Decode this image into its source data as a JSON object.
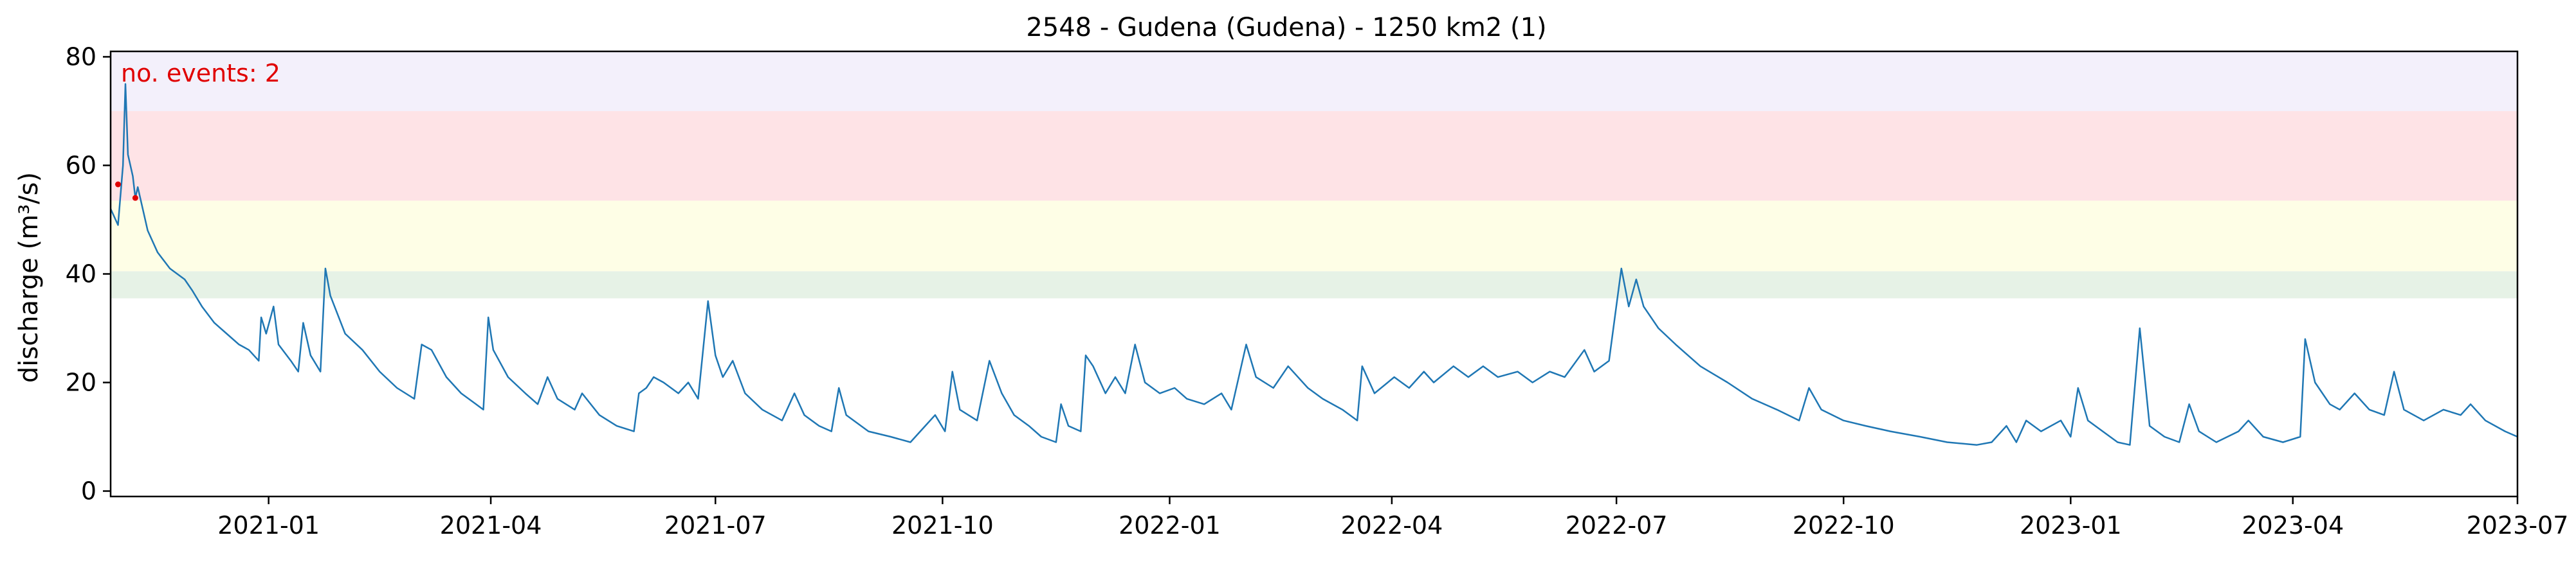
{
  "chart_data": {
    "type": "line",
    "title": "2548 - Gudena (Gudena) - 1250 km2 (1)",
    "xlabel": "",
    "ylabel": "discharge (m³/s)",
    "xlim": [
      "2020-10-29",
      "2023-07-01"
    ],
    "ylim": [
      -1,
      81
    ],
    "x_ticks": [
      "2021-01",
      "2021-04",
      "2021-07",
      "2021-10",
      "2022-01",
      "2022-04",
      "2022-07",
      "2022-10",
      "2023-01",
      "2023-04",
      "2023-07"
    ],
    "y_ticks": [
      0,
      20,
      40,
      60,
      80
    ],
    "grid": false,
    "threshold_bands": [
      {
        "from": 35.5,
        "to": 40.5,
        "color": "#e6f2e6"
      },
      {
        "from": 40.5,
        "to": 53.5,
        "color": "#fefee6"
      },
      {
        "from": 53.5,
        "to": 70.0,
        "color": "#fee3e6"
      },
      {
        "from": 70.0,
        "to": 81.0,
        "color": "#f3f0fb"
      }
    ],
    "annotation": {
      "text": "no. events: 2",
      "color": "#e00000"
    },
    "series": [
      {
        "color": "#1f77b4",
        "points": [
          [
            "2020-10-29",
            52
          ],
          [
            "2020-11-01",
            49
          ],
          [
            "2020-11-03",
            60
          ],
          [
            "2020-11-04",
            75
          ],
          [
            "2020-11-05",
            62
          ],
          [
            "2020-11-07",
            58
          ],
          [
            "2020-11-08",
            54
          ],
          [
            "2020-11-09",
            56
          ],
          [
            "2020-11-11",
            52
          ],
          [
            "2020-11-13",
            48
          ],
          [
            "2020-11-17",
            44
          ],
          [
            "2020-11-22",
            41
          ],
          [
            "2020-11-28",
            39
          ],
          [
            "2020-12-01",
            37
          ],
          [
            "2020-12-05",
            34
          ],
          [
            "2020-12-10",
            31
          ],
          [
            "2020-12-15",
            29
          ],
          [
            "2020-12-20",
            27
          ],
          [
            "2020-12-24",
            26
          ],
          [
            "2020-12-28",
            24
          ],
          [
            "2020-12-29",
            32
          ],
          [
            "2020-12-31",
            29
          ],
          [
            "2021-01-03",
            34
          ],
          [
            "2021-01-05",
            27
          ],
          [
            "2021-01-10",
            24
          ],
          [
            "2021-01-13",
            22
          ],
          [
            "2021-01-15",
            31
          ],
          [
            "2021-01-18",
            25
          ],
          [
            "2021-01-22",
            22
          ],
          [
            "2021-01-24",
            41
          ],
          [
            "2021-01-26",
            36
          ],
          [
            "2021-02-01",
            29
          ],
          [
            "2021-02-08",
            26
          ],
          [
            "2021-02-15",
            22
          ],
          [
            "2021-02-22",
            19
          ],
          [
            "2021-03-01",
            17
          ],
          [
            "2021-03-04",
            27
          ],
          [
            "2021-03-08",
            26
          ],
          [
            "2021-03-14",
            21
          ],
          [
            "2021-03-20",
            18
          ],
          [
            "2021-03-26",
            16
          ],
          [
            "2021-03-29",
            15
          ],
          [
            "2021-03-31",
            32
          ],
          [
            "2021-04-02",
            26
          ],
          [
            "2021-04-08",
            21
          ],
          [
            "2021-04-15",
            18
          ],
          [
            "2021-04-20",
            16
          ],
          [
            "2021-04-24",
            21
          ],
          [
            "2021-04-28",
            17
          ],
          [
            "2021-05-05",
            15
          ],
          [
            "2021-05-08",
            18
          ],
          [
            "2021-05-15",
            14
          ],
          [
            "2021-05-22",
            12
          ],
          [
            "2021-05-29",
            11
          ],
          [
            "2021-05-31",
            18
          ],
          [
            "2021-06-03",
            19
          ],
          [
            "2021-06-06",
            21
          ],
          [
            "2021-06-10",
            20
          ],
          [
            "2021-06-16",
            18
          ],
          [
            "2021-06-20",
            20
          ],
          [
            "2021-06-24",
            17
          ],
          [
            "2021-06-28",
            35
          ],
          [
            "2021-07-01",
            25
          ],
          [
            "2021-07-04",
            21
          ],
          [
            "2021-07-08",
            24
          ],
          [
            "2021-07-13",
            18
          ],
          [
            "2021-07-20",
            15
          ],
          [
            "2021-07-28",
            13
          ],
          [
            "2021-08-02",
            18
          ],
          [
            "2021-08-06",
            14
          ],
          [
            "2021-08-12",
            12
          ],
          [
            "2021-08-17",
            11
          ],
          [
            "2021-08-20",
            19
          ],
          [
            "2021-08-23",
            14
          ],
          [
            "2021-09-01",
            11
          ],
          [
            "2021-09-10",
            10
          ],
          [
            "2021-09-18",
            9
          ],
          [
            "2021-09-24",
            12
          ],
          [
            "2021-09-28",
            14
          ],
          [
            "2021-10-02",
            11
          ],
          [
            "2021-10-05",
            22
          ],
          [
            "2021-10-08",
            15
          ],
          [
            "2021-10-15",
            13
          ],
          [
            "2021-10-20",
            24
          ],
          [
            "2021-10-25",
            18
          ],
          [
            "2021-10-30",
            14
          ],
          [
            "2021-11-05",
            12
          ],
          [
            "2021-11-10",
            10
          ],
          [
            "2021-11-16",
            9
          ],
          [
            "2021-11-18",
            16
          ],
          [
            "2021-11-21",
            12
          ],
          [
            "2021-11-26",
            11
          ],
          [
            "2021-11-28",
            25
          ],
          [
            "2021-12-01",
            23
          ],
          [
            "2021-12-06",
            18
          ],
          [
            "2021-12-10",
            21
          ],
          [
            "2021-12-14",
            18
          ],
          [
            "2021-12-18",
            27
          ],
          [
            "2021-12-22",
            20
          ],
          [
            "2021-12-28",
            18
          ],
          [
            "2022-01-03",
            19
          ],
          [
            "2022-01-08",
            17
          ],
          [
            "2022-01-15",
            16
          ],
          [
            "2022-01-22",
            18
          ],
          [
            "2022-01-26",
            15
          ],
          [
            "2022-02-01",
            27
          ],
          [
            "2022-02-05",
            21
          ],
          [
            "2022-02-12",
            19
          ],
          [
            "2022-02-18",
            23
          ],
          [
            "2022-02-26",
            19
          ],
          [
            "2022-03-04",
            17
          ],
          [
            "2022-03-12",
            15
          ],
          [
            "2022-03-18",
            13
          ],
          [
            "2022-03-20",
            23
          ],
          [
            "2022-03-25",
            18
          ],
          [
            "2022-04-02",
            21
          ],
          [
            "2022-04-08",
            19
          ],
          [
            "2022-04-14",
            22
          ],
          [
            "2022-04-18",
            20
          ],
          [
            "2022-04-26",
            23
          ],
          [
            "2022-05-02",
            21
          ],
          [
            "2022-05-08",
            23
          ],
          [
            "2022-05-14",
            21
          ],
          [
            "2022-05-22",
            22
          ],
          [
            "2022-05-28",
            20
          ],
          [
            "2022-06-04",
            22
          ],
          [
            "2022-06-10",
            21
          ],
          [
            "2022-06-18",
            26
          ],
          [
            "2022-06-22",
            22
          ],
          [
            "2022-06-28",
            24
          ],
          [
            "2022-07-03",
            41
          ],
          [
            "2022-07-06",
            34
          ],
          [
            "2022-07-09",
            39
          ],
          [
            "2022-07-12",
            34
          ],
          [
            "2022-07-18",
            30
          ],
          [
            "2022-07-25",
            27
          ],
          [
            "2022-08-04",
            23
          ],
          [
            "2022-08-15",
            20
          ],
          [
            "2022-08-25",
            17
          ],
          [
            "2022-09-04",
            15
          ],
          [
            "2022-09-13",
            13
          ],
          [
            "2022-09-17",
            19
          ],
          [
            "2022-09-22",
            15
          ],
          [
            "2022-10-01",
            13
          ],
          [
            "2022-10-10",
            12
          ],
          [
            "2022-10-20",
            11
          ],
          [
            "2022-11-01",
            10
          ],
          [
            "2022-11-12",
            9
          ],
          [
            "2022-11-24",
            8.5
          ],
          [
            "2022-11-30",
            9
          ],
          [
            "2022-12-06",
            12
          ],
          [
            "2022-12-10",
            9
          ],
          [
            "2022-12-14",
            13
          ],
          [
            "2022-12-20",
            11
          ],
          [
            "2022-12-28",
            13
          ],
          [
            "2023-01-01",
            10
          ],
          [
            "2023-01-04",
            19
          ],
          [
            "2023-01-08",
            13
          ],
          [
            "2023-01-14",
            11
          ],
          [
            "2023-01-20",
            9
          ],
          [
            "2023-01-25",
            8.5
          ],
          [
            "2023-01-29",
            30
          ],
          [
            "2023-02-02",
            12
          ],
          [
            "2023-02-08",
            10
          ],
          [
            "2023-02-14",
            9
          ],
          [
            "2023-02-18",
            16
          ],
          [
            "2023-02-22",
            11
          ],
          [
            "2023-03-01",
            9
          ],
          [
            "2023-03-10",
            11
          ],
          [
            "2023-03-14",
            13
          ],
          [
            "2023-03-20",
            10
          ],
          [
            "2023-03-28",
            9
          ],
          [
            "2023-04-04",
            10
          ],
          [
            "2023-04-06",
            28
          ],
          [
            "2023-04-10",
            20
          ],
          [
            "2023-04-16",
            16
          ],
          [
            "2023-04-20",
            15
          ],
          [
            "2023-04-26",
            18
          ],
          [
            "2023-05-02",
            15
          ],
          [
            "2023-05-08",
            14
          ],
          [
            "2023-05-12",
            22
          ],
          [
            "2023-05-16",
            15
          ],
          [
            "2023-05-24",
            13
          ],
          [
            "2023-06-01",
            15
          ],
          [
            "2023-06-08",
            14
          ],
          [
            "2023-06-12",
            16
          ],
          [
            "2023-06-18",
            13
          ],
          [
            "2023-06-26",
            11
          ],
          [
            "2023-07-01",
            10
          ]
        ]
      }
    ],
    "event_markers": [
      {
        "x": "2020-11-01",
        "y": 56.5
      },
      {
        "x": "2020-11-08",
        "y": 54
      }
    ]
  }
}
